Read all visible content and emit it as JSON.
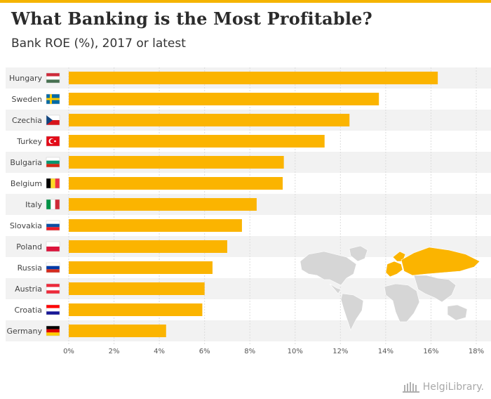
{
  "header": {
    "title": "What Banking is the Most Profitable?",
    "subtitle": "Bank ROE (%), 2017 or latest"
  },
  "colors": {
    "bar": "#fbb400",
    "band": "#f2f2f2",
    "grid": "#dcdcdc",
    "map_land": "#d6d6d6",
    "map_highlight": "#fbb400",
    "text": "#444444"
  },
  "chart_data": {
    "type": "bar",
    "orientation": "horizontal",
    "categories": [
      "Hungary",
      "Sweden",
      "Czechia",
      "Turkey",
      "Bulgaria",
      "Belgium",
      "Italy",
      "Slovakia",
      "Poland",
      "Russia",
      "Austria",
      "Croatia",
      "Germany"
    ],
    "values": [
      16.3,
      13.7,
      12.4,
      11.3,
      9.5,
      9.45,
      8.3,
      7.65,
      7.0,
      6.35,
      6.0,
      5.9,
      4.3
    ],
    "xlim": [
      0,
      18
    ],
    "xticks": [
      "0%",
      "2%",
      "4%",
      "6%",
      "8%",
      "10%",
      "12%",
      "14%",
      "16%",
      "18%"
    ],
    "grid": true,
    "flags": [
      {
        "stripes": [
          "#ce2939",
          "#ffffff",
          "#477050"
        ],
        "dir": "h"
      },
      {
        "stripes": [
          "#006aa7",
          "#fecc00"
        ],
        "dir": "nordic"
      },
      {
        "stripes": [
          "#ffffff",
          "#d7141a",
          "#11457e"
        ],
        "dir": "cz"
      },
      {
        "stripes": [
          "#e30a17",
          "#ffffff"
        ],
        "dir": "tr"
      },
      {
        "stripes": [
          "#ffffff",
          "#00966e",
          "#d62612"
        ],
        "dir": "h"
      },
      {
        "stripes": [
          "#000000",
          "#fdda24",
          "#ef3340"
        ],
        "dir": "v"
      },
      {
        "stripes": [
          "#009246",
          "#ffffff",
          "#ce2b37"
        ],
        "dir": "v"
      },
      {
        "stripes": [
          "#ffffff",
          "#0b4ea2",
          "#ee1c25"
        ],
        "dir": "h"
      },
      {
        "stripes": [
          "#ffffff",
          "#dc143c"
        ],
        "dir": "h"
      },
      {
        "stripes": [
          "#ffffff",
          "#0039a6",
          "#d52b1e"
        ],
        "dir": "h"
      },
      {
        "stripes": [
          "#ed2939",
          "#ffffff",
          "#ed2939"
        ],
        "dir": "h"
      },
      {
        "stripes": [
          "#ff0000",
          "#ffffff",
          "#171796"
        ],
        "dir": "h"
      },
      {
        "stripes": [
          "#000000",
          "#dd0000",
          "#ffce00"
        ],
        "dir": "h"
      }
    ]
  },
  "footer": {
    "logo_text": "HelgiLibrary."
  }
}
